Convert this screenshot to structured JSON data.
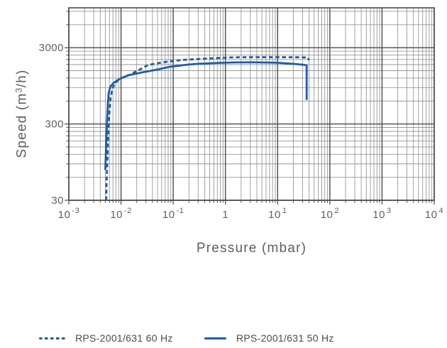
{
  "chart_data": {
    "type": "line",
    "title": "",
    "xlabel": "Pressure (mbar)",
    "ylabel": {
      "pre": "Speed (m",
      "sup": "3",
      "post": "/h)"
    },
    "x_scale": "log",
    "y_scale": "log",
    "xlim": [
      0.001,
      10000
    ],
    "ylim": [
      30,
      10000
    ],
    "grid": {
      "style": "log-graph-paper, minor and major lines both axes",
      "x_minor_multipliers": [
        2,
        3,
        4,
        5,
        6,
        7,
        8,
        9
      ],
      "y_major_anchors": [
        30,
        300,
        3000
      ],
      "y_minor_multipliers": [
        2,
        3,
        4,
        5,
        6,
        7,
        8,
        9
      ]
    },
    "x_ticks": [
      {
        "value": 0.001,
        "mantissa": "10",
        "exp": "-3"
      },
      {
        "value": 0.01,
        "mantissa": "10",
        "exp": "-2"
      },
      {
        "value": 0.1,
        "mantissa": "10",
        "exp": "-1"
      },
      {
        "value": 1,
        "mantissa": "1",
        "exp": ""
      },
      {
        "value": 10,
        "mantissa": "10",
        "exp": "1"
      },
      {
        "value": 100,
        "mantissa": "10",
        "exp": "2"
      },
      {
        "value": 1000,
        "mantissa": "10",
        "exp": "3"
      },
      {
        "value": 10000,
        "mantissa": "10",
        "exp": "4"
      }
    ],
    "y_ticks": [
      {
        "value": 3000,
        "label": "3000"
      },
      {
        "value": 300,
        "label": "300"
      },
      {
        "value": 30,
        "label": "30"
      }
    ],
    "legend_position": "bottom",
    "series": [
      {
        "name": "RPS-2001/631 60 Hz",
        "style": "dashed",
        "color": "#1d5ca7",
        "points": [
          [
            0.0052,
            30
          ],
          [
            0.0053,
            55
          ],
          [
            0.0055,
            110
          ],
          [
            0.0057,
            230
          ],
          [
            0.006,
            430
          ],
          [
            0.0063,
            650
          ],
          [
            0.0068,
            870
          ],
          [
            0.0078,
            1040
          ],
          [
            0.0095,
            1180
          ],
          [
            0.0135,
            1290
          ],
          [
            0.02,
            1480
          ],
          [
            0.033,
            1780
          ],
          [
            0.06,
            1920
          ],
          [
            0.088,
            1990
          ],
          [
            0.16,
            2080
          ],
          [
            0.31,
            2130
          ],
          [
            0.7,
            2195
          ],
          [
            1.34,
            2240
          ],
          [
            3,
            2255
          ],
          [
            7,
            2255
          ],
          [
            15,
            2250
          ],
          [
            25,
            2245
          ],
          [
            33,
            2235
          ],
          [
            38,
            2225
          ],
          [
            40,
            2060
          ]
        ]
      },
      {
        "name": "RPS-2001/631 50 Hz",
        "style": "solid",
        "color": "#1d5ca7",
        "points": [
          [
            0.005,
            75
          ],
          [
            0.0052,
            170
          ],
          [
            0.0054,
            330
          ],
          [
            0.0056,
            560
          ],
          [
            0.0058,
            770
          ],
          [
            0.0063,
            935
          ],
          [
            0.0072,
            1035
          ],
          [
            0.0092,
            1160
          ],
          [
            0.0135,
            1300
          ],
          [
            0.025,
            1420
          ],
          [
            0.047,
            1540
          ],
          [
            0.088,
            1690
          ],
          [
            0.19,
            1800
          ],
          [
            0.31,
            1850
          ],
          [
            0.79,
            1900
          ],
          [
            1.5,
            1925
          ],
          [
            3.7,
            1930
          ],
          [
            9.5,
            1910
          ],
          [
            20,
            1845
          ],
          [
            33,
            1785
          ],
          [
            36,
            1760
          ],
          [
            36,
            620
          ]
        ]
      }
    ],
    "colors": {
      "curve_blue": "#1d5ca7",
      "grid_major": "#4a4a4a",
      "grid_minor": "#979797",
      "plot_border": "#4a4a4a",
      "tick_text": "#616161",
      "axis_title_text": "#5e5e5e",
      "legend_text": "#4a4a4a",
      "background": "#ffffff"
    }
  }
}
